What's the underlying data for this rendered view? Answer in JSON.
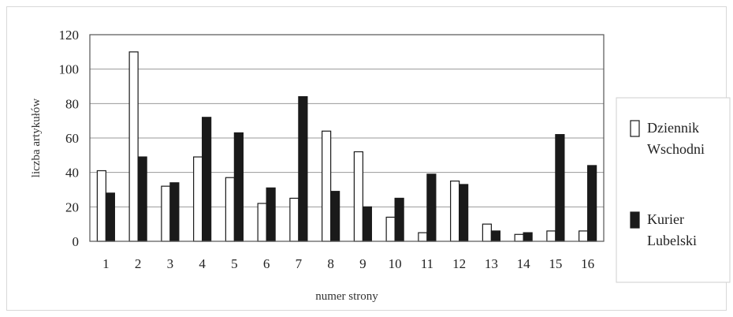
{
  "chart_data": {
    "type": "bar",
    "title": "",
    "xlabel": "numer strony",
    "ylabel": "liczba artykułów",
    "categories": [
      "1",
      "2",
      "3",
      "4",
      "5",
      "6",
      "7",
      "8",
      "9",
      "10",
      "11",
      "12",
      "13",
      "14",
      "15",
      "16"
    ],
    "ylim": [
      0,
      120
    ],
    "yticks": [
      0,
      20,
      40,
      60,
      80,
      100,
      120
    ],
    "grid": true,
    "legend_position": "right",
    "series": [
      {
        "name": "Dziennik Wschodni",
        "legend_lines": [
          "Dziennik",
          "Wschodni"
        ],
        "fill": "#ffffff",
        "values": [
          41,
          110,
          32,
          49,
          37,
          22,
          25,
          64,
          52,
          14,
          5,
          35,
          10,
          4,
          6,
          6
        ]
      },
      {
        "name": "Kurier Lubelski",
        "legend_lines": [
          "Kurier",
          "Lubelski"
        ],
        "fill": "#1a1a1a",
        "values": [
          28,
          49,
          34,
          72,
          63,
          31,
          84,
          29,
          20,
          25,
          39,
          33,
          6,
          5,
          62,
          44
        ]
      }
    ]
  }
}
